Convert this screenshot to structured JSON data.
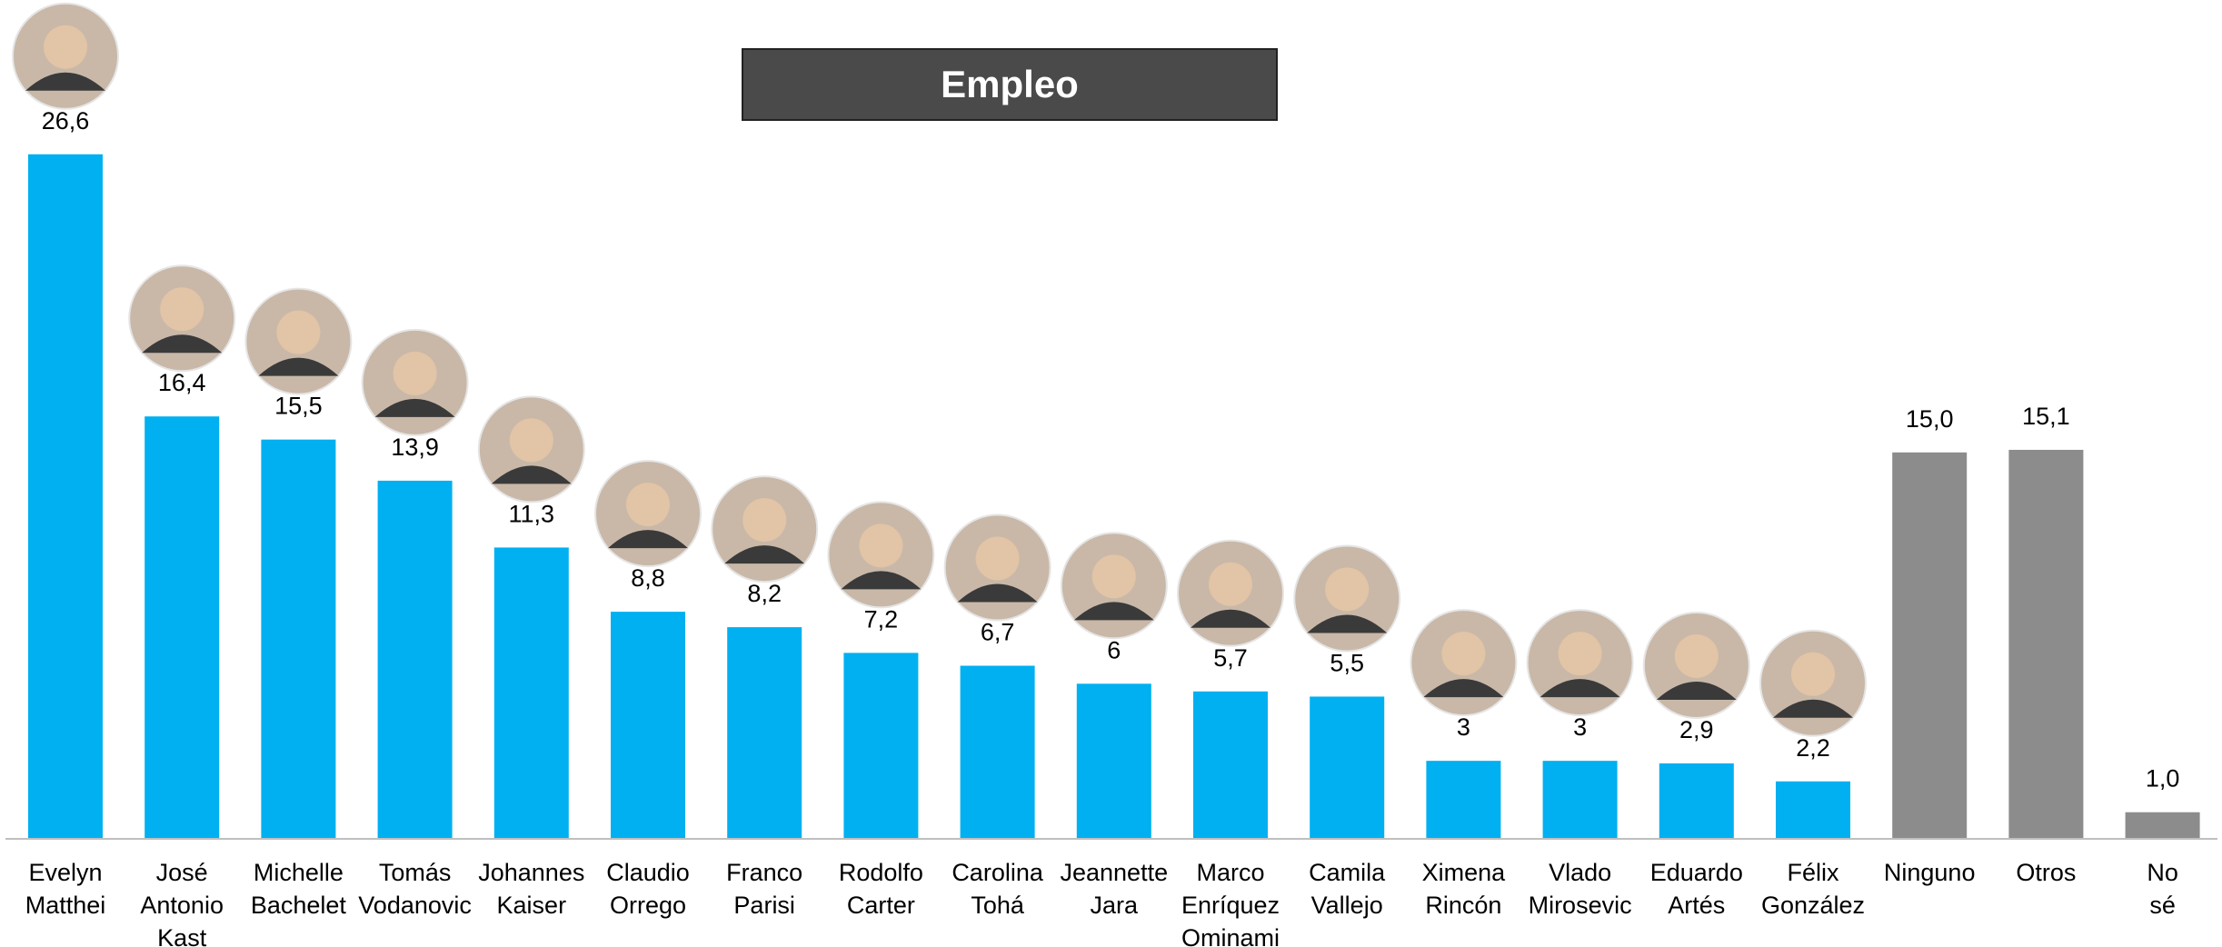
{
  "chart_data": {
    "type": "bar",
    "title": "Empleo",
    "categories": [
      "Evelyn Matthei",
      "José Antonio Kast",
      "Michelle Bachelet",
      "Tomás Vodanovic",
      "Johannes Kaiser",
      "Claudio Orrego",
      "Franco Parisi",
      "Rodolfo Carter",
      "Carolina Tohá",
      "Jeannette Jara",
      "Marco Enríquez Ominami",
      "Camila Vallejo",
      "Ximena Rincón",
      "Vlado Mirosevic",
      "Eduardo Artés",
      "Félix González",
      "Ninguno",
      "Otros",
      "No sé"
    ],
    "values": [
      26.6,
      16.4,
      15.5,
      13.9,
      11.3,
      8.8,
      8.2,
      7.2,
      6.7,
      6,
      5.7,
      5.5,
      3,
      3,
      2.9,
      2.2,
      15.0,
      15.1,
      1.0
    ],
    "value_labels": [
      "26,6",
      "16,4",
      "15,5",
      "13,9",
      "11,3",
      "8,8",
      "8,2",
      "7,2",
      "6,7",
      "6",
      "5,7",
      "5,5",
      "3",
      "3",
      "2,9",
      "2,2",
      "15,0",
      "15,1",
      "1,0"
    ],
    "colors": [
      "#00b0f0",
      "#00b0f0",
      "#00b0f0",
      "#00b0f0",
      "#00b0f0",
      "#00b0f0",
      "#00b0f0",
      "#00b0f0",
      "#00b0f0",
      "#00b0f0",
      "#00b0f0",
      "#00b0f0",
      "#00b0f0",
      "#00b0f0",
      "#00b0f0",
      "#00b0f0",
      "#8c8c8c",
      "#8c8c8c",
      "#8c8c8c"
    ]
  }
}
